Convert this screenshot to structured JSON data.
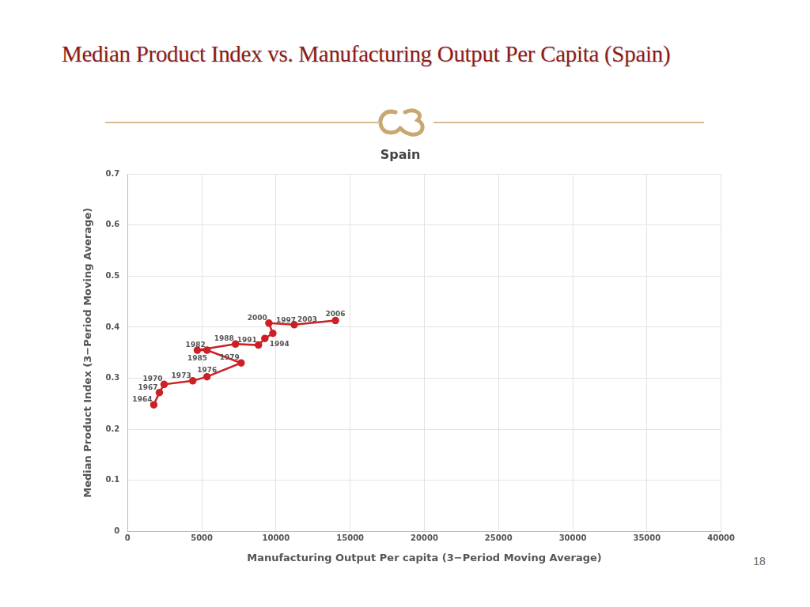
{
  "slide_title": "Median Product Index vs. Manufacturing Output Per Capita (Spain)",
  "page_number": "18",
  "chart_data": {
    "type": "line",
    "title": "Spain",
    "x_label": "Manufacturing Output Per capita (3−Period Moving Average)",
    "y_label": "Median Product Index (3−Period Moving Average)",
    "x": [
      1765,
      2140,
      2460,
      4390,
      5350,
      7650,
      5350,
      4700,
      7270,
      8820,
      9250,
      9790,
      9520,
      11230,
      14010
    ],
    "series": [
      {
        "name": "Spain",
        "color": "#cc1f26",
        "marker": "circle",
        "values": [
          0.248,
          0.272,
          0.288,
          0.295,
          0.303,
          0.33,
          0.355,
          0.355,
          0.367,
          0.365,
          0.378,
          0.388,
          0.408,
          0.405,
          0.413
        ],
        "point_labels": [
          "1964",
          "1967",
          "1970",
          "1973",
          "1976",
          "1979",
          "1982",
          "1985",
          "1988",
          "1991",
          "1994",
          "1997",
          "2000",
          "2003",
          "2006"
        ]
      }
    ],
    "xlim": [
      0,
      40000
    ],
    "xticks": [
      0,
      5000,
      10000,
      15000,
      20000,
      25000,
      30000,
      35000,
      40000
    ],
    "ylim": [
      0,
      0.7
    ],
    "yticks": [
      0,
      0.1,
      0.2,
      0.3,
      0.4,
      0.5,
      0.6,
      0.7
    ],
    "grid": true
  }
}
